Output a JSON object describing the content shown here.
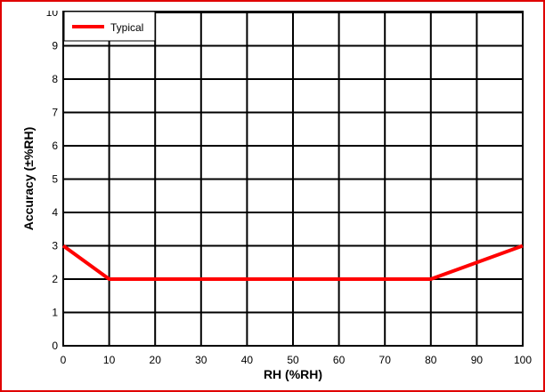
{
  "chart_data": {
    "type": "line",
    "xlabel": "RH (%RH)",
    "ylabel": "Accuracy (±%RH)",
    "xlim": [
      0,
      100
    ],
    "ylim": [
      0,
      10
    ],
    "x_ticks": [
      "0",
      "10",
      "20",
      "30",
      "40",
      "50",
      "60",
      "70",
      "80",
      "90",
      "100"
    ],
    "y_ticks": [
      "0",
      "1",
      "2",
      "3",
      "4",
      "5",
      "6",
      "7",
      "8",
      "9",
      "10"
    ],
    "grid": true,
    "legend_placement": "top-left",
    "series": [
      {
        "name": "Typical",
        "color": "#ff0000",
        "x": [
          0,
          10,
          80,
          100
        ],
        "y": [
          3,
          2,
          2,
          3
        ]
      }
    ]
  }
}
